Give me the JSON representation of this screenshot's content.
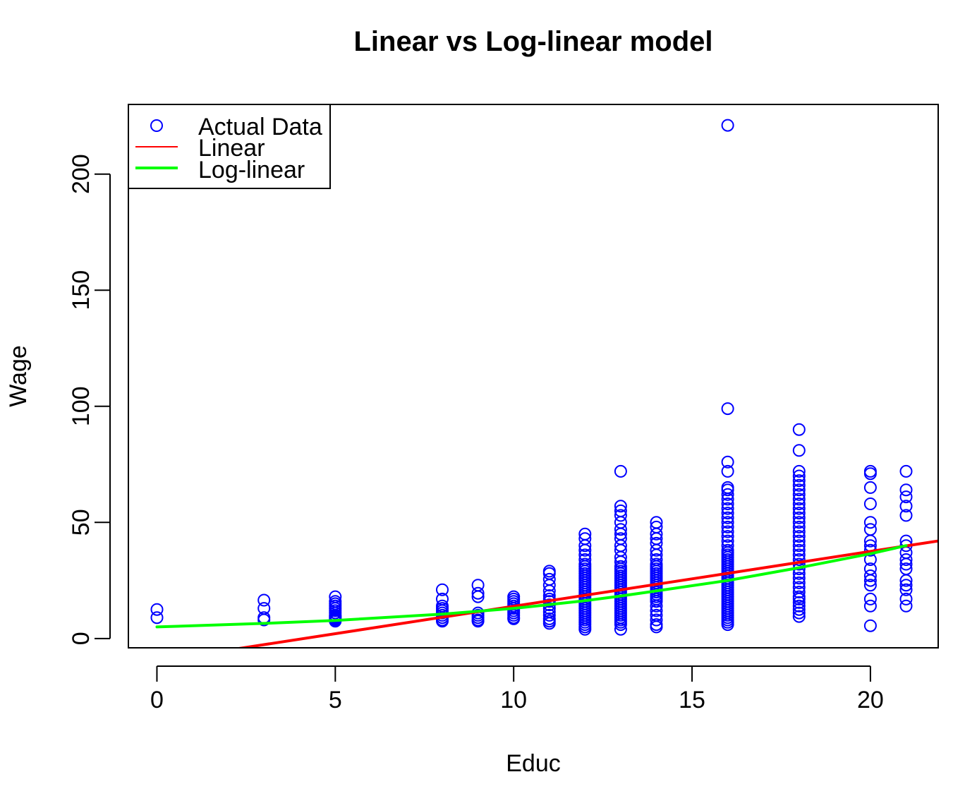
{
  "chart_data": {
    "type": "scatter",
    "title": "Linear vs Log-linear model",
    "xlabel": "Educ",
    "ylabel": "Wage",
    "xlim": [
      -0.8,
      21.9
    ],
    "ylim": [
      -4,
      230
    ],
    "x_ticks": [
      0,
      5,
      10,
      15,
      20
    ],
    "y_ticks": [
      0,
      50,
      100,
      150,
      200
    ],
    "legend_position": "top-left",
    "legend": [
      {
        "label": "Actual Data",
        "kind": "point",
        "color": "#0000ff"
      },
      {
        "label": "Linear",
        "kind": "line",
        "color": "#ff0000"
      },
      {
        "label": "Log-linear",
        "kind": "line",
        "color": "#00ff00"
      }
    ],
    "series": [
      {
        "name": "Actual Data",
        "type": "scatter",
        "color": "#0000ff",
        "groups": [
          {
            "x": 0,
            "y": [
              9,
              12.5
            ]
          },
          {
            "x": 3,
            "y": [
              8,
              9,
              13,
              16.5
            ]
          },
          {
            "x": 5,
            "y": [
              7.5,
              8,
              8.5,
              9,
              9.5,
              10,
              11,
              12,
              13,
              14,
              15,
              16,
              18
            ]
          },
          {
            "x": 8,
            "y": [
              7.5,
              8,
              9,
              10,
              11,
              12,
              13,
              14,
              17,
              21
            ]
          },
          {
            "x": 9,
            "y": [
              7.5,
              8,
              9,
              10,
              11,
              18,
              19.5,
              23
            ]
          },
          {
            "x": 10,
            "y": [
              8.5,
              9,
              10,
              11,
              12,
              13,
              14,
              15,
              16,
              17,
              18
            ]
          },
          {
            "x": 11,
            "y": [
              6.5,
              7.5,
              8.5,
              10,
              11.5,
              13,
              14.5,
              16,
              17,
              18.5,
              20.5,
              23,
              25.5,
              28,
              29
            ]
          },
          {
            "x": 12,
            "y": [
              4,
              5,
              6,
              7,
              8,
              9,
              10,
              11,
              12,
              13,
              14,
              15,
              16,
              17,
              18,
              19,
              20,
              21,
              22,
              23,
              24,
              25,
              26,
              27,
              28,
              29,
              30,
              31,
              32,
              34,
              36,
              38,
              40,
              43,
              45
            ]
          },
          {
            "x": 13,
            "y": [
              4,
              6,
              7,
              8,
              9,
              10,
              11,
              12,
              13,
              14,
              15,
              16,
              17,
              18,
              19,
              20,
              21,
              22,
              23,
              24,
              25,
              26,
              27,
              28,
              29,
              30,
              31,
              33,
              35,
              38,
              40,
              43,
              45,
              47,
              50,
              53,
              55,
              57,
              72
            ]
          },
          {
            "x": 14,
            "y": [
              5,
              6,
              8,
              10,
              12,
              14,
              16,
              17,
              18,
              19,
              20,
              21,
              22,
              23,
              24,
              25,
              26,
              27,
              28,
              29,
              30,
              31,
              32,
              34,
              36,
              38,
              41,
              43,
              45,
              48,
              50
            ]
          },
          {
            "x": 16,
            "y": [
              6,
              7,
              8,
              9,
              10,
              11,
              12,
              13,
              14,
              15,
              16,
              17,
              18,
              19,
              20,
              21,
              22,
              23,
              24,
              25,
              26,
              27,
              28,
              29,
              30,
              31,
              32,
              33,
              34,
              35,
              36,
              37,
              38,
              40,
              42,
              44,
              46,
              48,
              50,
              52,
              54,
              56,
              58,
              60,
              62,
              64,
              65,
              72,
              76,
              99,
              221
            ]
          },
          {
            "x": 18,
            "y": [
              9.5,
              11,
              12.5,
              14,
              15.5,
              17,
              18,
              20,
              22,
              24,
              26,
              28,
              30,
              32,
              34,
              36,
              38,
              40,
              42,
              44,
              46,
              48,
              50,
              52,
              54,
              56,
              58,
              60,
              62,
              64,
              66,
              68,
              70,
              72,
              81,
              90
            ]
          },
          {
            "x": 20,
            "y": [
              5.5,
              14,
              17,
              23,
              25,
              27,
              30,
              34,
              38,
              40,
              42,
              47,
              50,
              58,
              65,
              71,
              72
            ]
          },
          {
            "x": 21,
            "y": [
              14,
              17,
              21,
              23,
              25,
              30,
              32,
              34,
              37,
              40,
              42,
              53,
              57,
              61,
              64,
              72
            ]
          }
        ]
      },
      {
        "name": "Linear",
        "type": "line",
        "color": "#ff0000",
        "x": [
          2.0,
          21.9
        ],
        "y": [
          -5,
          42
        ]
      },
      {
        "name": "Log-linear",
        "type": "line",
        "color": "#00ff00",
        "x": [
          0,
          3,
          5,
          8,
          10,
          11,
          12,
          13,
          14,
          16,
          18,
          20,
          21
        ],
        "y": [
          5,
          6.5,
          7.8,
          10.5,
          13,
          14.6,
          16.3,
          18.3,
          20.5,
          25,
          30.5,
          36.5,
          40
        ]
      }
    ]
  }
}
